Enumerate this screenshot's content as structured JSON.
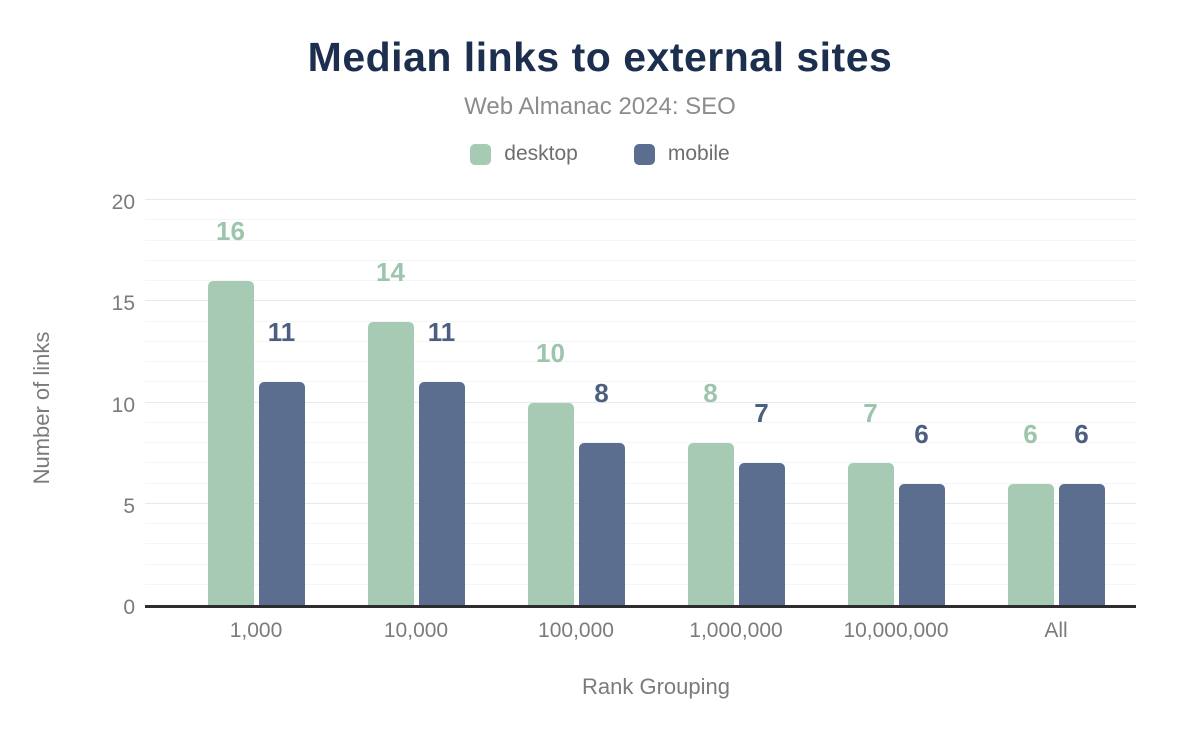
{
  "header": {
    "title": "Median links to external sites",
    "subtitle": "Web Almanac 2024: SEO"
  },
  "chart_data": {
    "type": "bar",
    "title": "Median links to external sites",
    "subtitle": "Web Almanac 2024: SEO",
    "categories": [
      "1,000",
      "10,000",
      "100,000",
      "1,000,000",
      "10,000,000",
      "All"
    ],
    "series": [
      {
        "name": "desktop",
        "values": [
          16,
          14,
          10,
          8,
          7,
          6
        ],
        "color": "#a6cab4",
        "label_color": "#9dc5ad"
      },
      {
        "name": "mobile",
        "values": [
          11,
          11,
          8,
          7,
          6,
          6
        ],
        "color": "#5c6e90",
        "label_color": "#4d5f80"
      }
    ],
    "xlabel": "Rank Grouping",
    "ylabel": "Number of links",
    "ylim": [
      0,
      20
    ],
    "yticks": [
      0,
      5,
      10,
      15,
      20
    ],
    "grid": {
      "orientation": "horizontal",
      "minor_step": 1,
      "major_step": 5
    },
    "legend_position": "top",
    "bar_value_labels": true
  },
  "colors": {
    "title": "#1d2f4e",
    "subtitle": "#8c8c8c",
    "legend_text": "#6e6e6e",
    "axis_text": "#7b7b7b",
    "axis_line": "#2d2d2d",
    "grid_minor": "#f5f5f5",
    "grid_major": "#e9e9e9",
    "desktop": "#a6cab4",
    "mobile": "#5c6e90"
  }
}
